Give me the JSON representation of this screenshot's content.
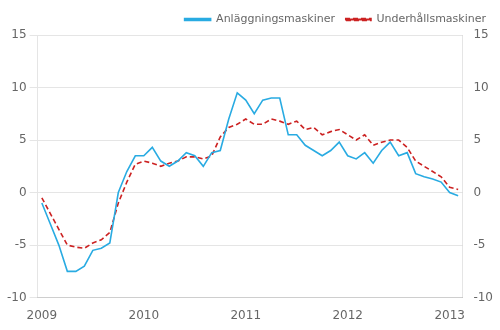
{
  "chart_data": {
    "type": "line",
    "categories": [
      "2009",
      null,
      null,
      null,
      null,
      null,
      null,
      null,
      null,
      null,
      null,
      null,
      "2010",
      null,
      null,
      null,
      null,
      null,
      null,
      null,
      null,
      null,
      null,
      null,
      "2011",
      null,
      null,
      null,
      null,
      null,
      null,
      null,
      null,
      null,
      null,
      null,
      "2012",
      null,
      null,
      null,
      null,
      null,
      null,
      null,
      null,
      null,
      null,
      null,
      "2013",
      null
    ],
    "series": [
      {
        "name": "Anläggningsmaskiner",
        "color": "#29abe2",
        "line_style": "solid",
        "marker": "none",
        "values": [
          -1.0,
          -3.0,
          -5.0,
          -7.5,
          -7.5,
          -7.0,
          -5.5,
          -5.3,
          -4.8,
          0.0,
          2.0,
          3.5,
          3.5,
          4.3,
          3.0,
          2.5,
          3.0,
          3.8,
          3.5,
          2.5,
          3.8,
          4.0,
          7.0,
          9.5,
          8.8,
          7.5,
          8.8,
          9.0,
          9.0,
          5.5,
          5.5,
          4.5,
          4.0,
          3.5,
          4.0,
          4.8,
          3.5,
          3.2,
          3.8,
          2.8,
          4.0,
          4.8,
          3.5,
          3.8,
          1.8,
          1.5,
          1.3,
          1.0,
          0.0,
          -0.3
        ]
      },
      {
        "name": "Underhållsmaskiner",
        "color": "#cc2222",
        "line_style": "dashed",
        "marker": "none",
        "values": [
          -0.5,
          -2.0,
          -3.5,
          -5.0,
          -5.2,
          -5.3,
          -4.8,
          -4.5,
          -3.8,
          -1.0,
          1.0,
          2.7,
          3.0,
          2.8,
          2.5,
          2.8,
          3.0,
          3.4,
          3.4,
          3.2,
          3.5,
          5.3,
          6.2,
          6.5,
          7.0,
          6.5,
          6.5,
          7.0,
          6.8,
          6.5,
          6.8,
          6.0,
          6.2,
          5.5,
          5.8,
          6.0,
          5.5,
          5.0,
          5.5,
          4.5,
          4.8,
          5.0,
          5.0,
          4.3,
          3.0,
          2.5,
          2.0,
          1.5,
          0.5,
          0.3
        ]
      }
    ],
    "ylim": [
      -10,
      15
    ],
    "yticks": [
      -10,
      -5,
      0,
      5,
      10,
      15
    ],
    "y2lim": [
      -10,
      15
    ],
    "y2ticks": [
      -10,
      -5,
      0,
      5,
      10,
      15
    ],
    "grid": true,
    "legend": "upper right"
  }
}
